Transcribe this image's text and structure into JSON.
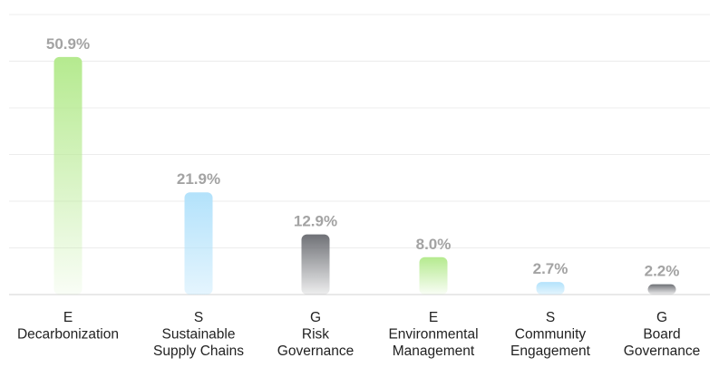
{
  "chart_data": {
    "type": "bar",
    "categories": [
      [
        "E",
        "Decarbonization"
      ],
      [
        "S",
        "Sustainable",
        "Supply Chains"
      ],
      [
        "G",
        "Risk",
        "Governance"
      ],
      [
        "E",
        "Environmental",
        "Management"
      ],
      [
        "S",
        "Community",
        "Engagement"
      ],
      [
        "G",
        "Board",
        "Governance"
      ]
    ],
    "values": [
      50.9,
      21.9,
      12.9,
      8.0,
      2.7,
      2.2
    ],
    "value_labels": [
      "50.9%",
      "21.9%",
      "12.9%",
      "8.0%",
      "2.7%",
      "2.2%"
    ],
    "title": "",
    "xlabel": "",
    "ylabel": "",
    "ylim": [
      0,
      60
    ],
    "grid": true,
    "legend": "none",
    "colors": {
      "E": "#b5ea8f",
      "S": "#b3e2fb",
      "G": "#6f7176"
    },
    "bar_color_keys": [
      "E",
      "S",
      "G",
      "E",
      "S",
      "G"
    ]
  }
}
